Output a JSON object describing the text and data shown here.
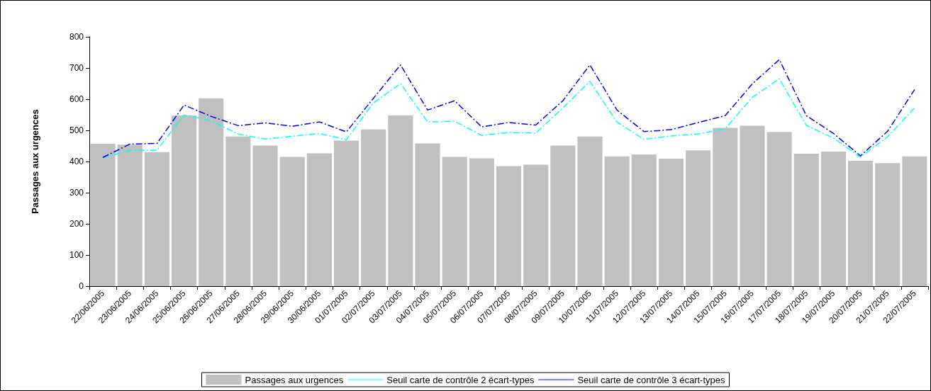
{
  "chart_data": {
    "type": "bar",
    "ylabel": "Passages aux urgences",
    "categories": [
      "22/06/2005",
      "23/06/2005",
      "24/06/2005",
      "25/06/2005",
      "26/06/2005",
      "27/06/2005",
      "28/06/2005",
      "29/06/2005",
      "30/06/2005",
      "01/07/2005",
      "02/07/2005",
      "03/07/2005",
      "04/07/2005",
      "05/07/2005",
      "06/07/2005",
      "07/07/2005",
      "08/07/2005",
      "09/07/2005",
      "10/07/2005",
      "11/07/2005",
      "12/07/2005",
      "13/07/2005",
      "14/07/2005",
      "15/07/2005",
      "16/07/2005",
      "17/07/2005",
      "18/07/2005",
      "19/07/2005",
      "20/07/2005",
      "21/07/2005",
      "22/07/2005"
    ],
    "series": [
      {
        "name": "Passages aux urgences",
        "color": "#c0c0c0",
        "values": [
          457,
          454,
          430,
          548,
          602,
          480,
          451,
          415,
          426,
          467,
          503,
          548,
          458,
          415,
          410,
          385,
          390,
          451,
          480,
          416,
          423,
          409,
          436,
          508,
          515,
          495,
          425,
          432,
          402,
          395,
          416
        ]
      },
      {
        "name": "Seuil carte de contrôle 2 écart-types",
        "type": "line",
        "color": "#00ffff",
        "line_style": "dashed",
        "values": [
          412,
          436,
          436,
          549,
          531,
          488,
          472,
          481,
          490,
          470,
          588,
          650,
          527,
          529,
          484,
          493,
          491,
          572,
          657,
          527,
          471,
          482,
          488,
          505,
          606,
          665,
          516,
          475,
          414,
          479,
          572
        ]
      },
      {
        "name": "Seuil carte de contrôle 3 écart-types",
        "type": "line",
        "color": "#0000ff",
        "line_style": "dashed",
        "values": [
          413,
          456,
          458,
          581,
          545,
          515,
          524,
          513,
          527,
          495,
          603,
          710,
          565,
          595,
          511,
          525,
          517,
          595,
          710,
          565,
          496,
          502,
          525,
          547,
          649,
          727,
          547,
          490,
          418,
          497,
          631
        ]
      }
    ],
    "ylim": [
      0,
      800
    ],
    "yticks": [
      0,
      100,
      200,
      300,
      400,
      500,
      600,
      700,
      800
    ],
    "grid": false,
    "legend": "bottom",
    "marker": "none"
  }
}
